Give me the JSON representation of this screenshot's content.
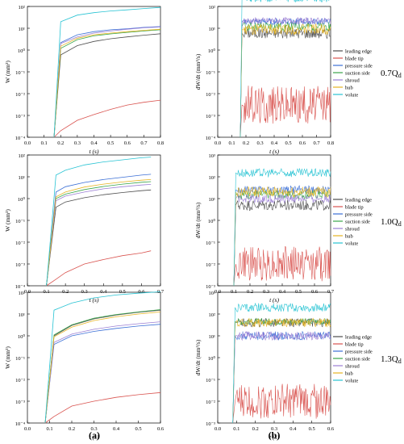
{
  "figure": {
    "caption_a": "(a)",
    "caption_b": "(b)"
  },
  "colors": {
    "leading edge": "#4d4d4d",
    "blade tip": "#d9534f",
    "pressure side": "#3b6fd6",
    "suction side": "#3aa54a",
    "shroud": "#9b7fd4",
    "hub": "#e6b422",
    "volute": "#27c3d3"
  },
  "series_names": [
    "leading edge",
    "blade tip",
    "pressure side",
    "suction side",
    "shroud",
    "hub",
    "volute"
  ],
  "rows": [
    {
      "label_main": "0.7Q",
      "label_sub": "d",
      "t_start": 0.16,
      "cum_xmax": 0.8,
      "cum_xticks": [
        "0.0",
        "0.1",
        "0.2",
        "0.3",
        "0.4",
        "0.5",
        "0.6",
        "0.7",
        "0.8"
      ],
      "rate_xmax": 0.8,
      "rate_xticks": [
        "0.0",
        "0.1",
        "0.2",
        "0.3",
        "0.4",
        "0.5",
        "0.6",
        "0.7",
        "0.8"
      ]
    },
    {
      "label_main": "1.0Q",
      "label_sub": "d",
      "t_start": 0.1,
      "cum_xmax": 0.7,
      "cum_xticks": [
        "0.0",
        "0.1",
        "0.2",
        "0.3",
        "0.4",
        "0.5",
        "0.6",
        "0.7"
      ],
      "rate_xmax": 0.7,
      "rate_xticks": [
        "0.0",
        "0.1",
        "0.2",
        "0.3",
        "0.4",
        "0.5",
        "0.6",
        "0.7"
      ]
    },
    {
      "label_main": "1.3Q",
      "label_sub": "d",
      "t_start": 0.08,
      "cum_xmax": 0.6,
      "cum_xticks": [
        "0.0",
        "0.1",
        "0.2",
        "0.3",
        "0.4",
        "0.5",
        "0.6"
      ],
      "rate_xmax": 0.6,
      "rate_xticks": [
        "0.0",
        "0.1",
        "0.2",
        "0.3",
        "0.4",
        "0.5",
        "0.6"
      ]
    }
  ],
  "chart_data": [
    {
      "type": "line",
      "panel": "a-0.7Qd",
      "xlabel": "t (s)",
      "ylabel": "W (mm³)",
      "xlim": [
        0,
        0.8
      ],
      "ylim_log10": [
        -4,
        2
      ],
      "yscale": "log",
      "ytick_labels": [
        "10²",
        "10¹",
        "10⁰",
        "10⁻¹",
        "10⁻²",
        "10⁻³",
        "10⁻⁴"
      ],
      "series": [
        {
          "name": "leading edge",
          "x": [
            0.16,
            0.2,
            0.3,
            0.4,
            0.5,
            0.6,
            0.7,
            0.8
          ],
          "y": [
            0.0001,
            0.6,
            1.6,
            2.5,
            3.3,
            4.0,
            4.8,
            5.6
          ]
        },
        {
          "name": "blade tip",
          "x": [
            0.16,
            0.2,
            0.3,
            0.4,
            0.5,
            0.6,
            0.7,
            0.8
          ],
          "y": [
            0.0001,
            0.0002,
            0.0006,
            0.0011,
            0.0019,
            0.003,
            0.004,
            0.005
          ]
        },
        {
          "name": "pressure side",
          "x": [
            0.16,
            0.2,
            0.3,
            0.4,
            0.5,
            0.6,
            0.7,
            0.8
          ],
          "y": [
            0.0001,
            2.2,
            5.0,
            7.0,
            8.5,
            9.5,
            11,
            12
          ]
        },
        {
          "name": "suction side",
          "x": [
            0.16,
            0.2,
            0.3,
            0.4,
            0.5,
            0.6,
            0.7,
            0.8
          ],
          "y": [
            0.0001,
            1.2,
            3.0,
            4.5,
            5.5,
            6.5,
            7.5,
            8.5
          ]
        },
        {
          "name": "shroud",
          "x": [
            0.16,
            0.2,
            0.3,
            0.4,
            0.5,
            0.6,
            0.7,
            0.8
          ],
          "y": [
            0.0001,
            2.0,
            4.0,
            6.0,
            7.5,
            9.0,
            10.5,
            11.5
          ]
        },
        {
          "name": "hub",
          "x": [
            0.16,
            0.2,
            0.3,
            0.4,
            0.5,
            0.6,
            0.7,
            0.8
          ],
          "y": [
            0.0001,
            1.5,
            3.5,
            5.0,
            6.0,
            7.0,
            8.0,
            9.0
          ]
        },
        {
          "name": "volute",
          "x": [
            0.16,
            0.2,
            0.3,
            0.4,
            0.5,
            0.6,
            0.7,
            0.8
          ],
          "y": [
            0.0001,
            20,
            40,
            52,
            62,
            70,
            80,
            90
          ]
        }
      ]
    },
    {
      "type": "line",
      "panel": "b-0.7Qd",
      "xlabel": "t (s)",
      "ylabel": "dW/dt (mm³/s)",
      "xlim": [
        0,
        0.8
      ],
      "ylim_log10": [
        -4,
        2
      ],
      "yscale": "log",
      "ytick_labels": [
        "10²",
        "10¹",
        "10⁰",
        "10⁻¹",
        "10⁻²",
        "10⁻³",
        "10⁻⁴"
      ],
      "legend": "right",
      "series": [
        {
          "name": "leading edge",
          "level": 6,
          "noise": 0.25
        },
        {
          "name": "blade tip",
          "level": 0.003,
          "noise": 0.9
        },
        {
          "name": "pressure side",
          "level": 20,
          "noise": 0.15
        },
        {
          "name": "suction side",
          "level": 12,
          "noise": 0.2
        },
        {
          "name": "shroud",
          "level": 22,
          "noise": 0.15
        },
        {
          "name": "hub",
          "level": 9,
          "noise": 0.25
        },
        {
          "name": "volute",
          "level": 250,
          "noise": 0.2
        }
      ]
    },
    {
      "type": "line",
      "panel": "a-1.0Qd",
      "xlabel": "t (s)",
      "ylabel": "W (mm³)",
      "xlim": [
        0,
        0.7
      ],
      "ylim_log10": [
        -4,
        2
      ],
      "yscale": "log",
      "ytick_labels": [
        "10²",
        "10¹",
        "10⁰",
        "10⁻¹",
        "10⁻²",
        "10⁻³",
        "10⁻⁴"
      ],
      "series": [
        {
          "name": "leading edge",
          "x": [
            0.1,
            0.15,
            0.2,
            0.3,
            0.4,
            0.5,
            0.6,
            0.65
          ],
          "y": [
            0.0001,
            0.4,
            0.7,
            1.1,
            1.5,
            1.9,
            2.3,
            2.5
          ]
        },
        {
          "name": "blade tip",
          "x": [
            0.1,
            0.15,
            0.2,
            0.3,
            0.4,
            0.5,
            0.6,
            0.65
          ],
          "y": [
            0.0001,
            0.0002,
            0.0004,
            0.001,
            0.0016,
            0.0024,
            0.0032,
            0.004
          ]
        },
        {
          "name": "pressure side",
          "x": [
            0.1,
            0.15,
            0.2,
            0.3,
            0.4,
            0.5,
            0.6,
            0.65
          ],
          "y": [
            0.0001,
            2.0,
            3.5,
            5.5,
            7.5,
            9.5,
            12,
            13
          ]
        },
        {
          "name": "suction side",
          "x": [
            0.1,
            0.15,
            0.2,
            0.3,
            0.4,
            0.5,
            0.6,
            0.65
          ],
          "y": [
            0.0001,
            1.0,
            1.6,
            2.6,
            3.6,
            4.6,
            5.6,
            6.0
          ]
        },
        {
          "name": "shroud",
          "x": [
            0.1,
            0.15,
            0.2,
            0.3,
            0.4,
            0.5,
            0.6,
            0.65
          ],
          "y": [
            0.0001,
            0.8,
            1.3,
            2.0,
            2.8,
            3.5,
            4.2,
            4.5
          ]
        },
        {
          "name": "hub",
          "x": [
            0.1,
            0.15,
            0.2,
            0.3,
            0.4,
            0.5,
            0.6,
            0.65
          ],
          "y": [
            0.0001,
            1.2,
            2.0,
            3.4,
            4.6,
            5.8,
            7.0,
            7.5
          ]
        },
        {
          "name": "volute",
          "x": [
            0.1,
            0.15,
            0.2,
            0.3,
            0.4,
            0.5,
            0.6,
            0.65
          ],
          "y": [
            0.0001,
            12,
            20,
            35,
            48,
            60,
            75,
            80
          ]
        }
      ]
    },
    {
      "type": "line",
      "panel": "b-1.0Qd",
      "xlabel": "t (s)",
      "ylabel": "dW/dt (mm³/s)",
      "xlim": [
        0,
        0.7
      ],
      "ylim_log10": [
        -3,
        3
      ],
      "yscale": "log",
      "ytick_labels": [
        "10³",
        "10²",
        "10¹",
        "10⁰",
        "10⁻¹",
        "10⁻²",
        "10⁻³"
      ],
      "legend": "right",
      "series": [
        {
          "name": "leading edge",
          "level": 5,
          "noise": 0.25
        },
        {
          "name": "blade tip",
          "level": 0.01,
          "noise": 0.8
        },
        {
          "name": "pressure side",
          "level": 25,
          "noise": 0.2
        },
        {
          "name": "suction side",
          "level": 15,
          "noise": 0.2
        },
        {
          "name": "shroud",
          "level": 10,
          "noise": 0.2
        },
        {
          "name": "hub",
          "level": 20,
          "noise": 0.25
        },
        {
          "name": "volute",
          "level": 150,
          "noise": 0.2
        }
      ]
    },
    {
      "type": "line",
      "panel": "a-1.3Qd",
      "xlabel": "t (s)",
      "ylabel": "W (mm³)",
      "xlim": [
        0,
        0.6
      ],
      "ylim_log10": [
        -4,
        2
      ],
      "yscale": "log",
      "ytick_labels": [
        "10²",
        "10¹",
        "10⁰",
        "10⁻¹",
        "10⁻²",
        "10⁻³",
        "10⁻⁴"
      ],
      "series": [
        {
          "name": "leading edge",
          "x": [
            0.08,
            0.12,
            0.2,
            0.3,
            0.4,
            0.5,
            0.6
          ],
          "y": [
            0.0001,
            1.0,
            3.0,
            6.0,
            9.0,
            12,
            15
          ]
        },
        {
          "name": "blade tip",
          "x": [
            0.08,
            0.12,
            0.2,
            0.3,
            0.4,
            0.5,
            0.6
          ],
          "y": [
            0.0001,
            0.0002,
            0.0006,
            0.001,
            0.0015,
            0.002,
            0.0025
          ]
        },
        {
          "name": "pressure side",
          "x": [
            0.08,
            0.12,
            0.2,
            0.3,
            0.4,
            0.5,
            0.6
          ],
          "y": [
            0.0001,
            0.4,
            1.0,
            1.6,
            2.2,
            2.8,
            3.4
          ]
        },
        {
          "name": "suction side",
          "x": [
            0.08,
            0.12,
            0.2,
            0.3,
            0.4,
            0.5,
            0.6
          ],
          "y": [
            0.0001,
            1.1,
            3.2,
            6.4,
            9.5,
            12.5,
            16
          ]
        },
        {
          "name": "shroud",
          "x": [
            0.08,
            0.12,
            0.2,
            0.3,
            0.4,
            0.5,
            0.6
          ],
          "y": [
            0.0001,
            0.5,
            1.2,
            2.0,
            2.8,
            3.6,
            4.4
          ]
        },
        {
          "name": "hub",
          "x": [
            0.08,
            0.12,
            0.2,
            0.3,
            0.4,
            0.5,
            0.6
          ],
          "y": [
            0.0001,
            0.9,
            2.5,
            5.0,
            7.5,
            10,
            12.5
          ]
        },
        {
          "name": "volute",
          "x": [
            0.08,
            0.12,
            0.2,
            0.3,
            0.4,
            0.5,
            0.6
          ],
          "y": [
            0.0001,
            15,
            32,
            55,
            75,
            90,
            105
          ]
        }
      ]
    },
    {
      "type": "line",
      "panel": "b-1.3Qd",
      "xlabel": "t (s)",
      "ylabel": "dW/dt (mm³/s)",
      "xlim": [
        0,
        0.6
      ],
      "ylim_log10": [
        -3,
        3
      ],
      "yscale": "log",
      "ytick_labels": [
        "10³",
        "10²",
        "10¹",
        "10⁰",
        "10⁻¹",
        "10⁻²",
        "10⁻³"
      ],
      "legend": "right",
      "series": [
        {
          "name": "leading edge",
          "level": 40,
          "noise": 0.2
        },
        {
          "name": "blade tip",
          "level": 0.01,
          "noise": 0.8
        },
        {
          "name": "pressure side",
          "level": 10,
          "noise": 0.2
        },
        {
          "name": "suction side",
          "level": 45,
          "noise": 0.15
        },
        {
          "name": "shroud",
          "level": 10,
          "noise": 0.2
        },
        {
          "name": "hub",
          "level": 40,
          "noise": 0.2
        },
        {
          "name": "volute",
          "level": 200,
          "noise": 0.2
        }
      ]
    }
  ]
}
